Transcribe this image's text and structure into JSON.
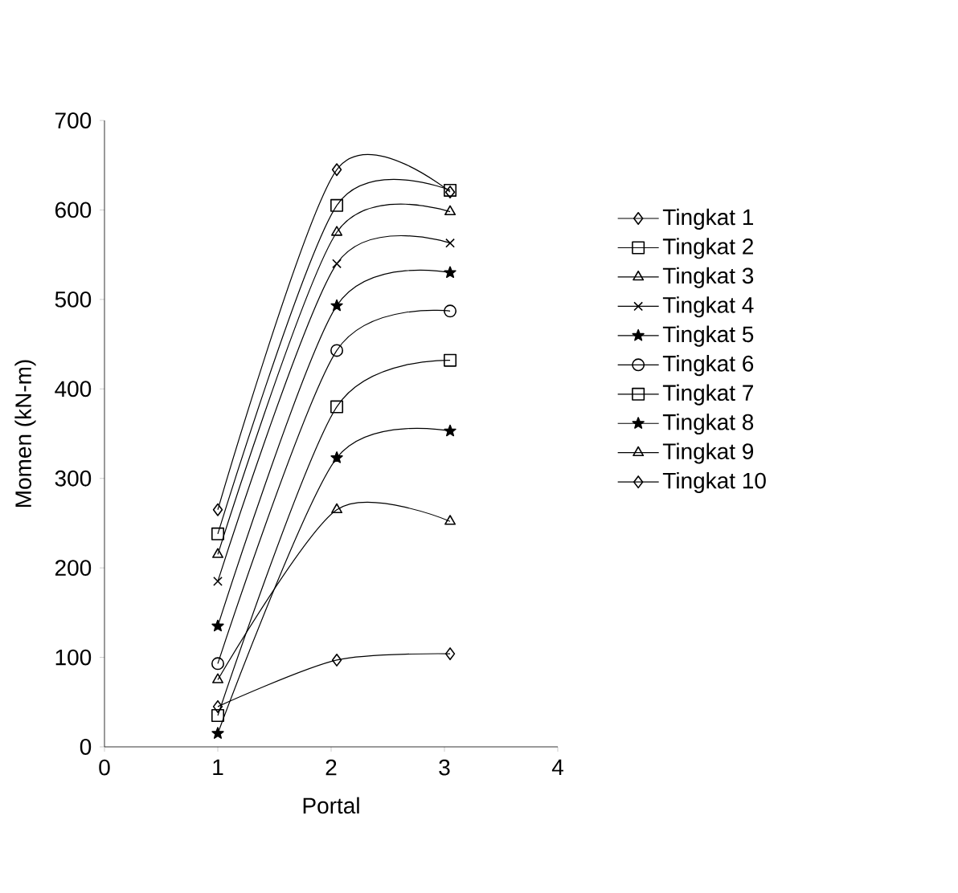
{
  "chart_data": {
    "type": "line",
    "xlabel": "Portal",
    "ylabel": "Momen (kN-m)",
    "xlim": [
      0,
      4
    ],
    "xticks": [
      0,
      1,
      2,
      3,
      4
    ],
    "ylim": [
      0,
      700
    ],
    "yticks": [
      0,
      100,
      200,
      300,
      400,
      500,
      600,
      700
    ],
    "x": [
      1,
      2.05,
      3.05
    ],
    "grid": false,
    "legend": "right",
    "line_style": "solid",
    "series": [
      {
        "name": "Tingkat 1",
        "color": "#000000",
        "marker": "diamond",
        "values": [
          265,
          645,
          620
        ]
      },
      {
        "name": "Tingkat 2",
        "color": "#000000",
        "marker": "square",
        "values": [
          238,
          605,
          622
        ]
      },
      {
        "name": "Tingkat 3",
        "color": "#000000",
        "marker": "triangle",
        "values": [
          215,
          575,
          598
        ]
      },
      {
        "name": "Tingkat 4",
        "color": "#000000",
        "marker": "cross",
        "values": [
          185,
          540,
          563
        ]
      },
      {
        "name": "Tingkat 5",
        "color": "#000000",
        "marker": "star",
        "values": [
          135,
          493,
          530
        ]
      },
      {
        "name": "Tingkat 6",
        "color": "#000000",
        "marker": "circle",
        "values": [
          93,
          443,
          487
        ]
      },
      {
        "name": "Tingkat 7",
        "color": "#000000",
        "marker": "square",
        "values": [
          35,
          380,
          432
        ]
      },
      {
        "name": "Tingkat 8",
        "color": "#000000",
        "marker": "star",
        "values": [
          15,
          323,
          353
        ]
      },
      {
        "name": "Tingkat 9",
        "color": "#000000",
        "marker": "triangle",
        "values": [
          75,
          265,
          252
        ]
      },
      {
        "name": "Tingkat 10",
        "color": "#000000",
        "marker": "diamond",
        "values": [
          45,
          97,
          104
        ]
      }
    ]
  }
}
